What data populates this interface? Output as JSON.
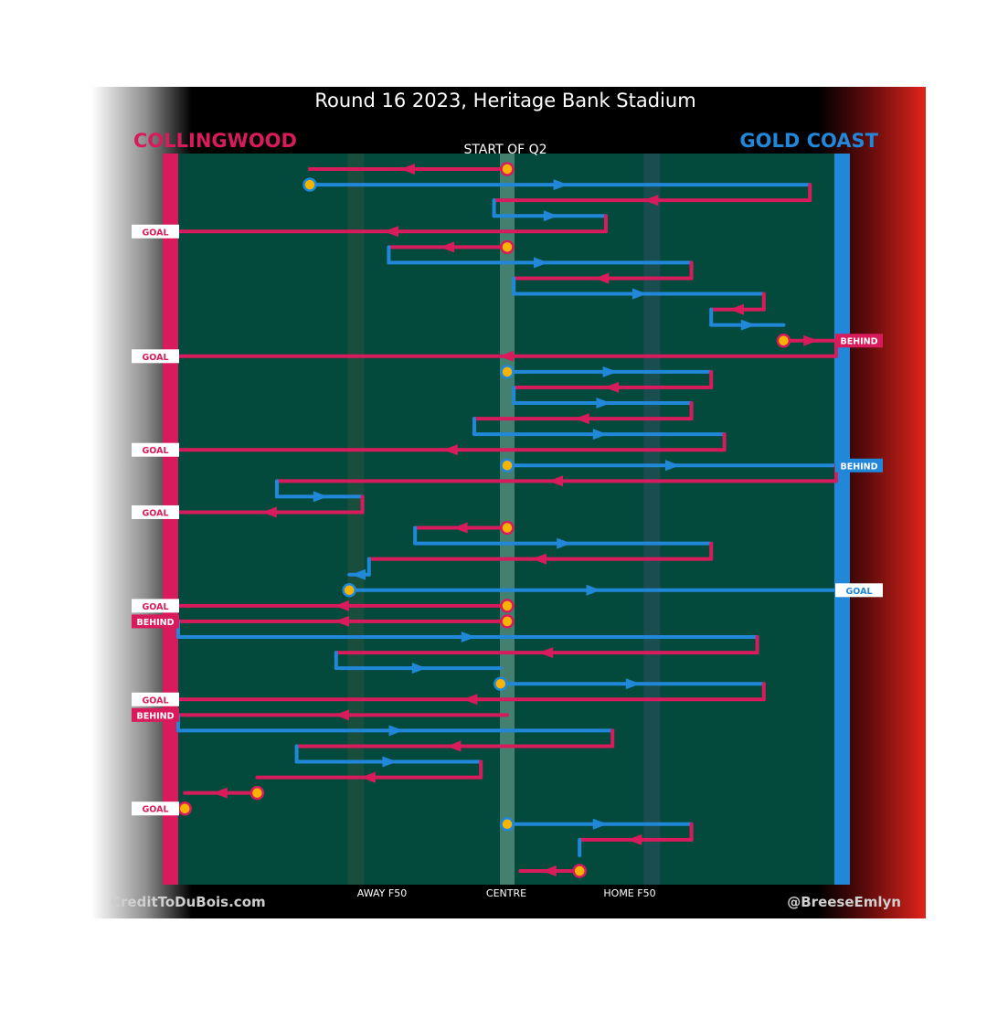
{
  "chart_data": {
    "type": "diagram",
    "title": "Round 16 2023, Heritage Bank Stadium",
    "subtitle": "START OF Q2",
    "home_team": "COLLINGWOOD",
    "away_team": "GOLD COAST",
    "x_axis_labels": [
      "AWAY F50",
      "CENTRE",
      "HOME F50"
    ],
    "credit_left": "CreditToDuBois.com",
    "credit_right": "@BreeseEmlyn",
    "x_range": [
      0,
      100
    ],
    "x_markers": {
      "away_f50": 27,
      "centre": 50,
      "home_f50": 72
    },
    "colors": {
      "collingwood": "#d81b5c",
      "gold_coast": "#2187d9",
      "ground": "#034a3c",
      "marker": "#f5b400"
    },
    "chains": [
      {
        "team": "C",
        "from": 50,
        "to": 20,
        "turn": 0,
        "start_marker": true
      },
      {
        "team": "G",
        "from": 20,
        "to": 96,
        "turn": 30,
        "start_marker": true
      },
      {
        "team": "C",
        "from": 96,
        "to": 48,
        "turn": 50
      },
      {
        "team": "G",
        "from": 48,
        "to": 65,
        "turn": 62
      },
      {
        "team": "C",
        "from": 65,
        "to": 0,
        "turn": 0,
        "result": "GOAL"
      },
      {
        "team": "C",
        "from": 50,
        "to": 32,
        "turn": 0,
        "start_marker": true
      },
      {
        "team": "G",
        "from": 32,
        "to": 78,
        "turn": 0
      },
      {
        "team": "C",
        "from": 78,
        "to": 51,
        "turn": 0
      },
      {
        "team": "G",
        "from": 51,
        "to": 89,
        "turn": 0
      },
      {
        "team": "C",
        "from": 89,
        "to": 81,
        "turn": 0
      },
      {
        "team": "G",
        "from": 81,
        "to": 92,
        "turn": 0
      },
      {
        "team": "C",
        "from": 92,
        "to": 100,
        "turn": 0,
        "start_marker": true,
        "result": "BEHIND"
      },
      {
        "team": "C",
        "from": 100,
        "to": 0,
        "turn": 0,
        "result": "GOAL"
      },
      {
        "team": "G",
        "from": 50,
        "to": 81,
        "turn": 0,
        "start_marker": true
      },
      {
        "team": "C",
        "from": 81,
        "to": 51,
        "turn": 0
      },
      {
        "team": "G",
        "from": 51,
        "to": 78,
        "turn": 0
      },
      {
        "team": "C",
        "from": 78,
        "to": 45,
        "turn": 0
      },
      {
        "team": "G",
        "from": 45,
        "to": 83,
        "turn": 0
      },
      {
        "team": "C",
        "from": 83,
        "to": 0,
        "turn": 0,
        "result": "GOAL"
      },
      {
        "team": "G",
        "from": 50,
        "to": 100,
        "turn": 0,
        "start_marker": true,
        "result": "BEHIND"
      },
      {
        "team": "C",
        "from": 100,
        "to": 15,
        "turn": 0
      },
      {
        "team": "G",
        "from": 15,
        "to": 28,
        "turn": 0
      },
      {
        "team": "C",
        "from": 28,
        "to": 0,
        "turn": 0,
        "result": "GOAL"
      },
      {
        "team": "C",
        "from": 50,
        "to": 36,
        "turn": 0,
        "start_marker": true
      },
      {
        "team": "G",
        "from": 36,
        "to": 81,
        "turn": 0
      },
      {
        "team": "C",
        "from": 81,
        "to": 29,
        "turn": 0
      },
      {
        "team": "G",
        "from": 29,
        "to": 26,
        "turn": 0
      },
      {
        "team": "G",
        "from": 26,
        "to": 100,
        "turn": 0,
        "start_marker": true,
        "result": "GOAL"
      },
      {
        "team": "C",
        "from": 50,
        "to": 0,
        "turn": 0,
        "start_marker": true,
        "result": "GOAL"
      },
      {
        "team": "C",
        "from": 50,
        "to": 0,
        "turn": 0,
        "start_marker": true,
        "result": "BEHIND"
      },
      {
        "team": "G",
        "from": 0,
        "to": 88,
        "turn": 0
      },
      {
        "team": "C",
        "from": 88,
        "to": 24,
        "turn": 0
      },
      {
        "team": "G",
        "from": 24,
        "to": 49,
        "turn": 0
      },
      {
        "team": "G",
        "from": 49,
        "to": 89,
        "turn": 0,
        "start_marker": true
      },
      {
        "team": "C",
        "from": 89,
        "to": 0,
        "turn": 0,
        "result": "GOAL"
      },
      {
        "team": "C",
        "from": 50,
        "to": 0,
        "turn": 0,
        "result": "BEHIND"
      },
      {
        "team": "G",
        "from": 0,
        "to": 66,
        "turn": 0
      },
      {
        "team": "C",
        "from": 66,
        "to": 18,
        "turn": 0
      },
      {
        "team": "G",
        "from": 18,
        "to": 46,
        "turn": 0
      },
      {
        "team": "C",
        "from": 46,
        "to": 12,
        "turn": 0
      },
      {
        "team": "C",
        "from": 12,
        "to": 1,
        "turn": 0,
        "start_marker": true
      },
      {
        "team": "C",
        "from": 1,
        "to": 0,
        "turn": 0,
        "start_marker": true,
        "result": "GOAL"
      },
      {
        "team": "G",
        "from": 50,
        "to": 78,
        "turn": 0,
        "start_marker": true
      },
      {
        "team": "C",
        "from": 78,
        "to": 61,
        "turn": 0
      },
      {
        "team": "G",
        "from": 61,
        "to": 61,
        "turn": 0
      },
      {
        "team": "C",
        "from": 61,
        "to": 52,
        "turn": 0,
        "start_marker": true
      }
    ]
  }
}
